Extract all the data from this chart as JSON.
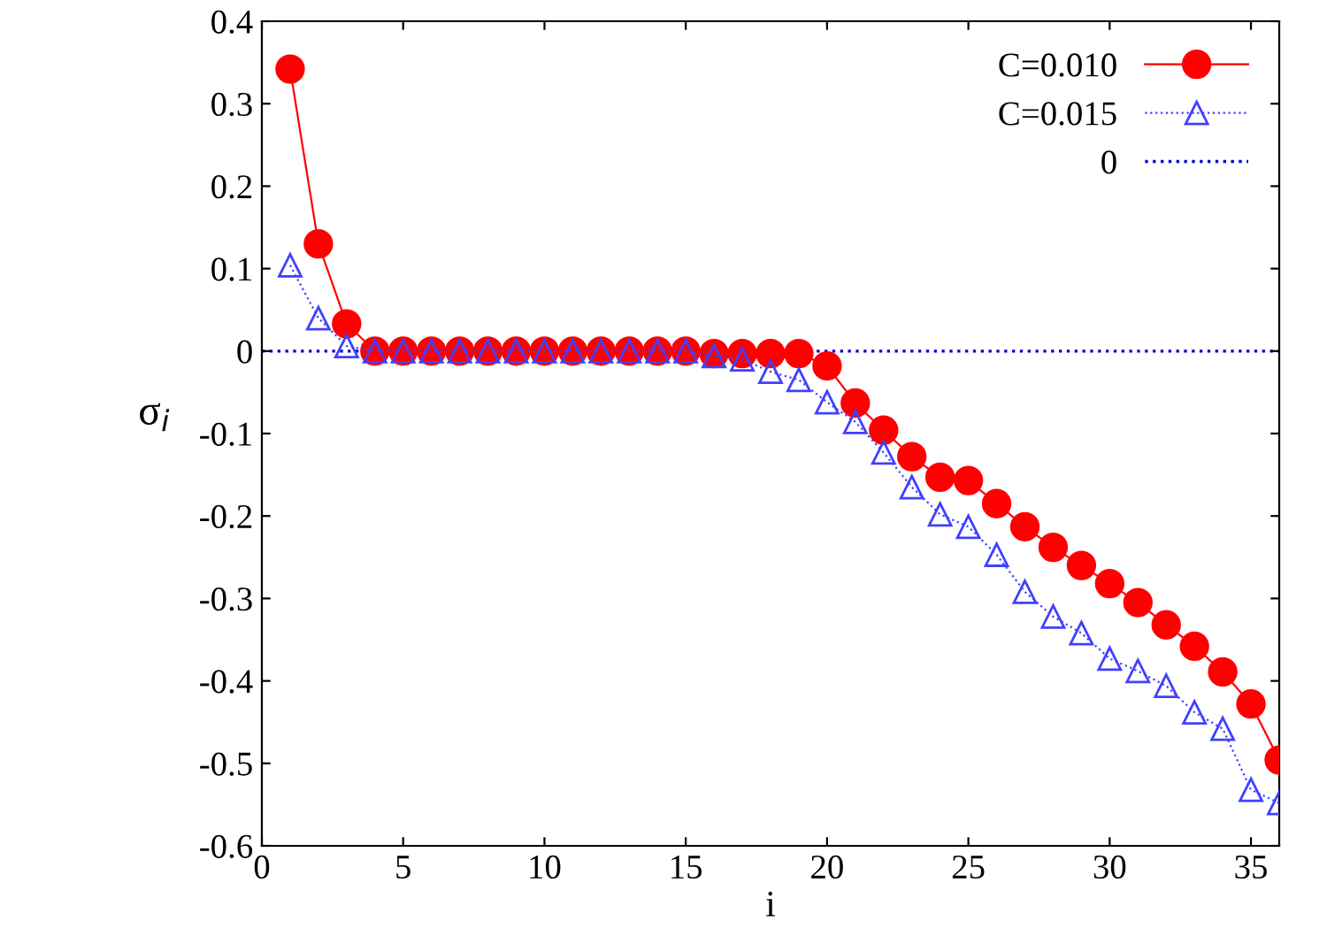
{
  "chart_data": {
    "type": "line",
    "xlabel": "i",
    "ylabel": "σ$_{i}$",
    "x": [
      1,
      2,
      3,
      4,
      5,
      6,
      7,
      8,
      9,
      10,
      11,
      12,
      13,
      14,
      15,
      16,
      17,
      18,
      19,
      20,
      21,
      22,
      23,
      24,
      25,
      26,
      27,
      28,
      29,
      30,
      31,
      32,
      33,
      34,
      35,
      36
    ],
    "series": [
      {
        "name": "C=0.010",
        "color": "#ff0000",
        "marker": "circle",
        "line_style": "solid",
        "values": [
          0.342,
          0.13,
          0.033,
          0,
          0,
          0,
          0,
          0,
          0,
          0,
          0,
          0,
          0,
          0,
          0,
          -0.003,
          -0.003,
          -0.003,
          -0.003,
          -0.018,
          -0.063,
          -0.096,
          -0.128,
          -0.153,
          -0.157,
          -0.185,
          -0.213,
          -0.238,
          -0.26,
          -0.282,
          -0.305,
          -0.332,
          -0.358,
          -0.389,
          -0.428,
          -0.496
        ]
      },
      {
        "name": "C=0.015",
        "color": "#4040ff",
        "marker": "triangle",
        "line_style": "dotted",
        "values": [
          0.104,
          0.04,
          0.006,
          0,
          0,
          0,
          0,
          0,
          0,
          0,
          0,
          0,
          0,
          0,
          0,
          -0.006,
          -0.01,
          -0.025,
          -0.035,
          -0.062,
          -0.086,
          -0.123,
          -0.165,
          -0.198,
          -0.213,
          -0.247,
          -0.292,
          -0.322,
          -0.342,
          -0.373,
          -0.388,
          -0.406,
          -0.438,
          -0.458,
          -0.532,
          -0.548
        ]
      }
    ],
    "ref_lines": [
      {
        "axis": "y",
        "value": 0,
        "label": "0",
        "color": "#0000cc",
        "line_style": "dotted"
      }
    ],
    "xlim": [
      0,
      36
    ],
    "xticks": [
      0,
      5,
      10,
      15,
      20,
      25,
      30,
      35
    ],
    "ylim": [
      -0.6,
      0.4
    ],
    "yticks": [
      -0.6,
      -0.5,
      -0.4,
      -0.3,
      -0.2,
      -0.1,
      0,
      0.1,
      0.2,
      0.3,
      0.4
    ],
    "grid": false,
    "legend": "top right"
  }
}
